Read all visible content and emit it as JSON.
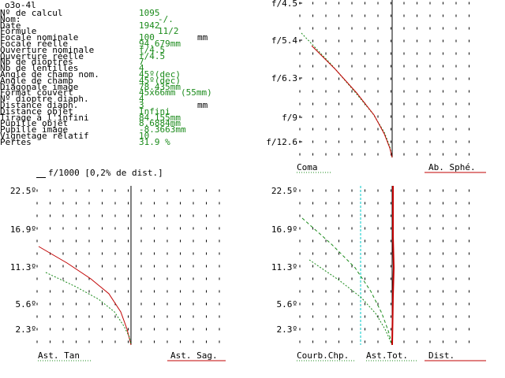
{
  "title": "o3o-4l",
  "specs": [
    {
      "label": "Nº de calcul",
      "value": "1095",
      "unit": ""
    },
    {
      "label": "Nom:",
      "value": "-/.",
      "unit": "",
      "shift": true
    },
    {
      "label": "Date",
      "value": "1942",
      "unit": ""
    },
    {
      "label": "Formule",
      "value": "11/2",
      "unit": "",
      "shift": true
    },
    {
      "label": "Focale nominale",
      "value": "100",
      "unit": "mm"
    },
    {
      "label": "Focale réelle",
      "value": "94.679mm",
      "unit": ""
    },
    {
      "label": "Ouverture nominale",
      "value": "f/4.5",
      "unit": ""
    },
    {
      "label": "Ouverture réelle",
      "value": "f/4.5",
      "unit": ""
    },
    {
      "label": "Nb de dioptres",
      "value": "7",
      "unit": ""
    },
    {
      "label": "Nb de lentilles",
      "value": "4",
      "unit": ""
    },
    {
      "label": "Angle de champ nom.",
      "value": "45º(dec)",
      "unit": ""
    },
    {
      "label": "Angle de champ",
      "value": "45º(dec)",
      "unit": ""
    },
    {
      "label": "Diagonale image",
      "value": "78.435mm",
      "unit": ""
    },
    {
      "label": "Format couvert",
      "value": "45x66mm (55mm)",
      "unit": ""
    },
    {
      "label": "Nº dioptre diaph.",
      "value": "4",
      "unit": ""
    },
    {
      "label": "Distance diaph.",
      "value": "3",
      "unit": "mm"
    },
    {
      "label": "Distance objet",
      "value": "Infini",
      "unit": ""
    },
    {
      "label": "Tirage à l'infini",
      "value": "84.155mm",
      "unit": ""
    },
    {
      "label": "Pupille objet",
      "value": "8.6884mm",
      "unit": ""
    },
    {
      "label": "Pupille image",
      "value": "-8.3663mm",
      "unit": ""
    },
    {
      "label": "Vignetage relatif",
      "value": "10",
      "unit": ""
    },
    {
      "label": "Pertes",
      "value": "31.9 %",
      "unit": ""
    }
  ],
  "top_right": {
    "y_labels": [
      "f/4.5",
      "f/5.4",
      "f/6.3",
      "f/9",
      "f/12.6"
    ],
    "legend_left": "Coma",
    "legend_right": "Ab. Sphé."
  },
  "header": "f/1000 [0,2% de dist.]",
  "bottom_left": {
    "y_labels": [
      "22.5º",
      "16.9º",
      "11.3º",
      "5.6º",
      "2.3º"
    ],
    "legend_left": "Ast. Tan",
    "legend_right": "Ast. Sag."
  },
  "bottom_right": {
    "y_labels": [
      "22.5º",
      "16.9º",
      "11.3º",
      "5.6º",
      "2.3º"
    ],
    "legend_1": "Courb.Chp.",
    "legend_2": "Ast.Tot.",
    "legend_3": "Dist."
  },
  "colors": {
    "green": "#1a8a1a",
    "red": "#c00000",
    "cyan": "#00c8c8"
  }
}
